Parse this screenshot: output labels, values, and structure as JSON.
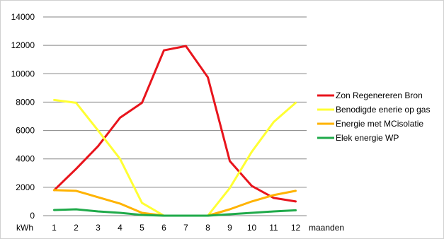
{
  "chart_data": {
    "type": "line",
    "x": [
      1,
      2,
      3,
      4,
      5,
      6,
      7,
      8,
      9,
      10,
      11,
      12
    ],
    "xlabel": "maanden",
    "ylabel": "kWh",
    "ylim": [
      0,
      14000
    ],
    "yticks": [
      0,
      2000,
      4000,
      6000,
      8000,
      10000,
      12000,
      14000
    ],
    "grid": true,
    "legend_position": "right",
    "series": [
      {
        "name": "Zon Regenereren Bron",
        "color": "#e8141c",
        "values": [
          1800,
          3300,
          4900,
          6900,
          7950,
          11650,
          11950,
          9750,
          3850,
          2100,
          1250,
          1000
        ]
      },
      {
        "name": "Benodigde enerie op gas",
        "color": "#ffff33",
        "values": [
          8150,
          7950,
          6000,
          4000,
          900,
          0,
          0,
          0,
          1950,
          4500,
          6600,
          7950
        ]
      },
      {
        "name": "Energie met MCisolatie",
        "color": "#ffb300",
        "values": [
          1800,
          1750,
          1300,
          850,
          200,
          0,
          0,
          0,
          450,
          1000,
          1450,
          1750
        ]
      },
      {
        "name": "Elek energie WP",
        "color": "#1faa4a",
        "values": [
          400,
          450,
          300,
          200,
          50,
          0,
          0,
          0,
          100,
          200,
          300,
          380
        ]
      }
    ]
  }
}
